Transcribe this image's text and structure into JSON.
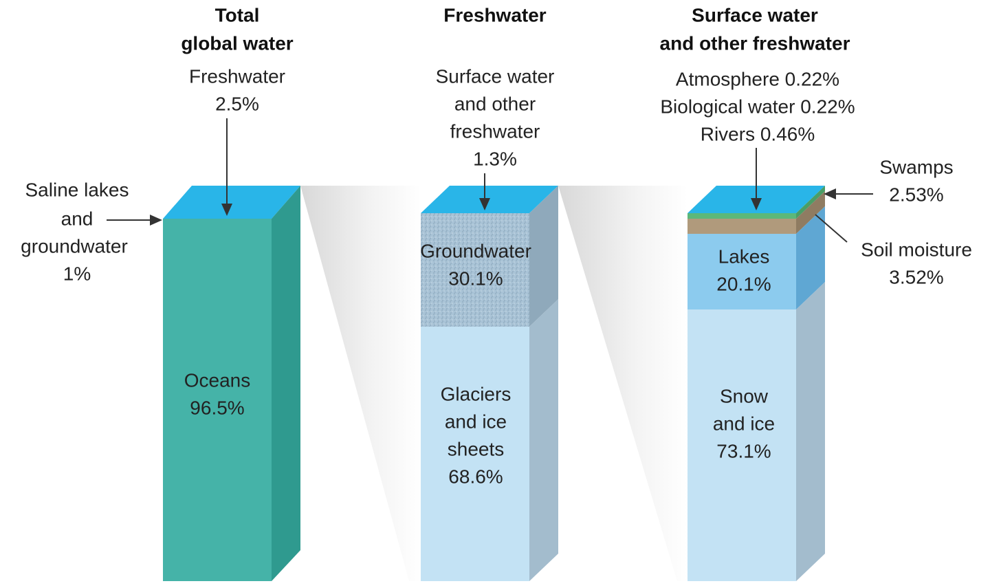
{
  "columns": [
    {
      "title": [
        "Total",
        "global water"
      ],
      "callouts": [
        {
          "lines": [
            "Freshwater",
            "2.5%"
          ]
        },
        {
          "lines": [
            "Saline lakes",
            "and",
            "groundwater",
            "1%"
          ]
        }
      ],
      "segments": [
        {
          "lines": [
            "Oceans",
            "96.5%"
          ]
        }
      ]
    },
    {
      "title": [
        "Freshwater"
      ],
      "callouts": [
        {
          "lines": [
            "Surface water",
            "and other",
            "freshwater",
            "1.3%"
          ]
        }
      ],
      "segments": [
        {
          "lines": [
            "Groundwater",
            "30.1%"
          ]
        },
        {
          "lines": [
            "Glaciers",
            "and ice",
            "sheets",
            "68.6%"
          ]
        }
      ]
    },
    {
      "title": [
        "Surface water",
        "and other freshwater"
      ],
      "callouts": [
        {
          "lines": [
            "Atmosphere 0.22%",
            "Biological water 0.22%",
            "Rivers 0.46%"
          ]
        },
        {
          "lines": [
            "Swamps",
            "2.53%"
          ]
        },
        {
          "lines": [
            "Soil moisture",
            "3.52%"
          ]
        }
      ],
      "segments": [
        {
          "lines": [
            "Lakes",
            "20.1%"
          ]
        },
        {
          "lines": [
            "Snow",
            "and ice",
            "73.1%"
          ]
        }
      ]
    }
  ]
}
